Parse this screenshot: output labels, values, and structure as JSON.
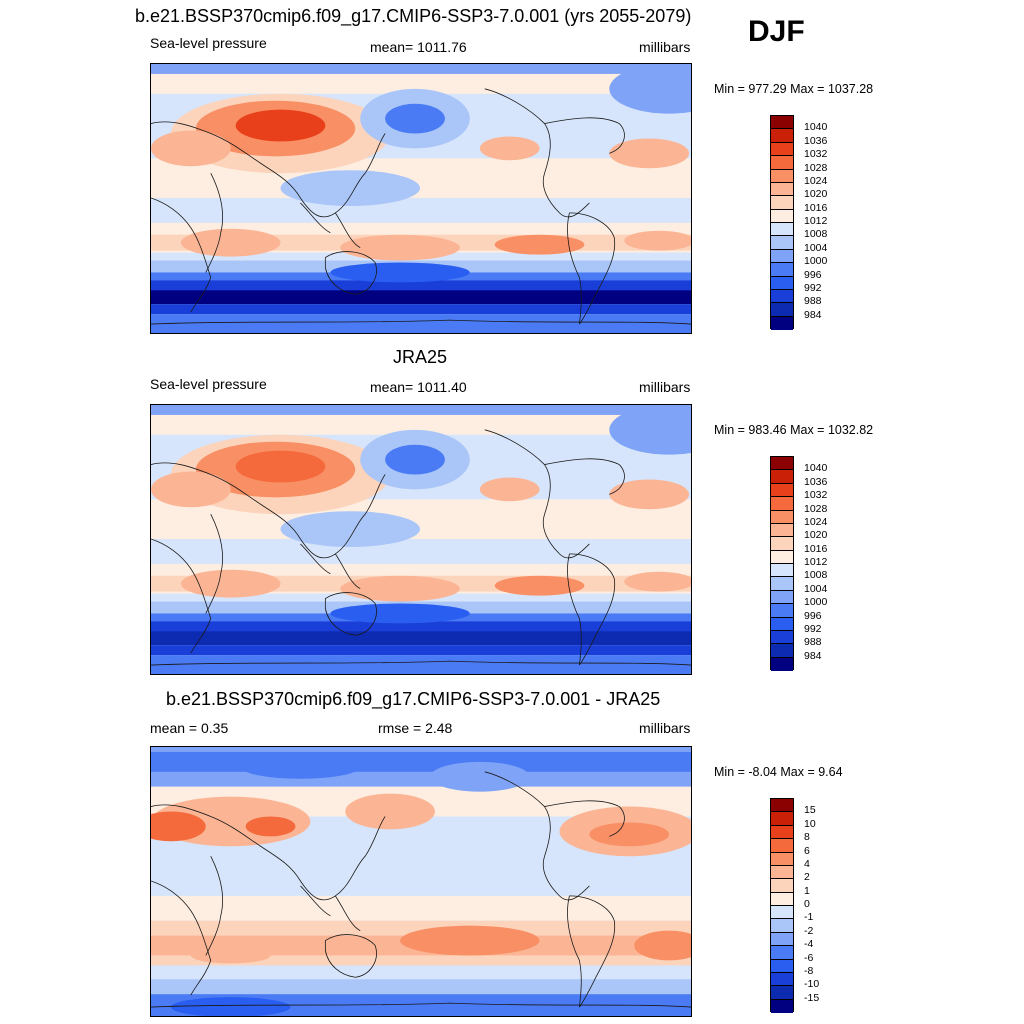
{
  "season": "DJF",
  "colors": {
    "pressure": [
      "#000080",
      "#0c2bb0",
      "#1a3fd9",
      "#2a5ef0",
      "#4a7bf5",
      "#7ea3f7",
      "#aac6f8",
      "#d6e5fb",
      "#fdeee1",
      "#fcd3bb",
      "#fbb595",
      "#f98f64",
      "#f46a3c",
      "#e8401a",
      "#c92007",
      "#8b0000"
    ],
    "diff": [
      "#000080",
      "#0c2bb0",
      "#1a3fd9",
      "#2a5ef0",
      "#4a7bf5",
      "#7ea3f7",
      "#aac6f8",
      "#d6e5fb",
      "#fdeee1",
      "#fcd3bb",
      "#fbb595",
      "#f98f64",
      "#f46a3c",
      "#e8401a",
      "#c92007",
      "#8b0000"
    ],
    "land_outline": "#1a1a1a"
  },
  "panels": [
    {
      "title": "b.e21.BSSP370cmip6.f09_g17.CMIP6-SSP3-7.0.001 (yrs 2055-2079)",
      "left_label": "Sea-level pressure",
      "center_label": "mean= 1011.76",
      "right_label": "millibars",
      "minmax": "Min = 977.29 Max = 1037.28",
      "colorbar": [
        "1040",
        "1036",
        "1032",
        "1028",
        "1024",
        "1020",
        "1016",
        "1012",
        "1008",
        "1004",
        "1000",
        "996",
        "992",
        "988",
        "984"
      ]
    },
    {
      "title": "JRA25",
      "left_label": "Sea-level pressure",
      "center_label": "mean= 1011.40",
      "right_label": "millibars",
      "minmax": "Min = 983.46 Max = 1032.82",
      "colorbar": [
        "1040",
        "1036",
        "1032",
        "1028",
        "1024",
        "1020",
        "1016",
        "1012",
        "1008",
        "1004",
        "1000",
        "996",
        "992",
        "988",
        "984"
      ]
    },
    {
      "title": "b.e21.BSSP370cmip6.f09_g17.CMIP6-SSP3-7.0.001 - JRA25",
      "left_label": "mean =   0.35",
      "center_label": "rmse =   2.48",
      "right_label": "millibars",
      "minmax": "Min =  -8.04 Max =   9.64",
      "colorbar": [
        "15",
        "10",
        "8",
        "6",
        "4",
        "2",
        "1",
        "0",
        "-1",
        "-2",
        "-4",
        "-6",
        "-8",
        "-10",
        "-15"
      ]
    }
  ]
}
